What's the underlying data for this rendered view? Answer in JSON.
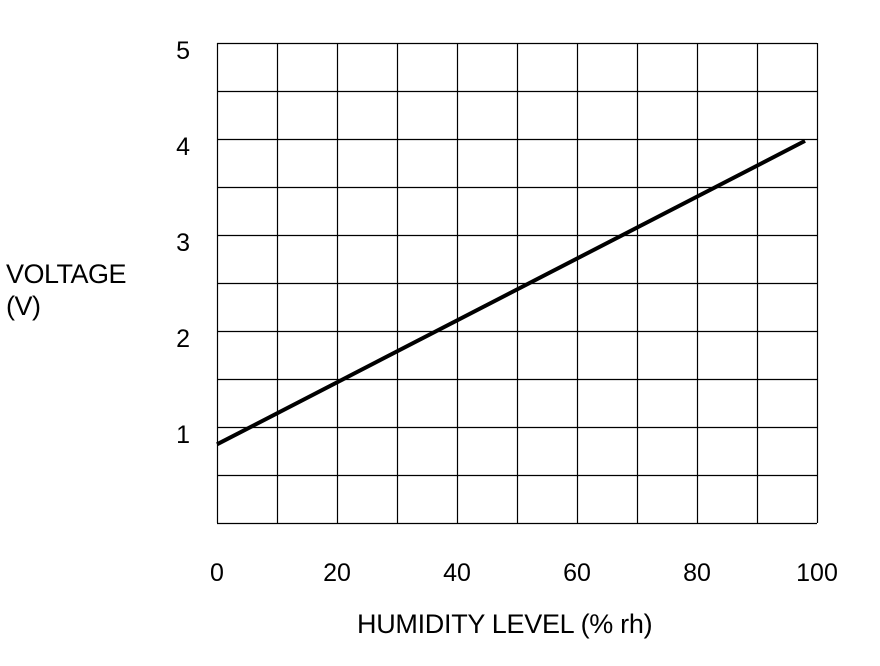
{
  "chart_data": {
    "type": "line",
    "title": "",
    "xlabel": "HUMIDITY LEVEL (% rh)",
    "ylabel_line1": "VOLTAGE",
    "ylabel_line2": "(V)",
    "x_ticks": [
      0,
      20,
      40,
      60,
      80,
      100
    ],
    "y_ticks": [
      1,
      2,
      3,
      4,
      5
    ],
    "xlim": [
      0,
      100
    ],
    "ylim": [
      0,
      5
    ],
    "grid": true,
    "x_grid_step": 10,
    "y_grid_step": 0.5,
    "series": [
      {
        "x": [
          0,
          98
        ],
        "y": [
          0.82,
          3.98
        ]
      }
    ],
    "colors": {
      "line": "#000000",
      "grid": "#000000",
      "background": "#ffffff"
    }
  }
}
